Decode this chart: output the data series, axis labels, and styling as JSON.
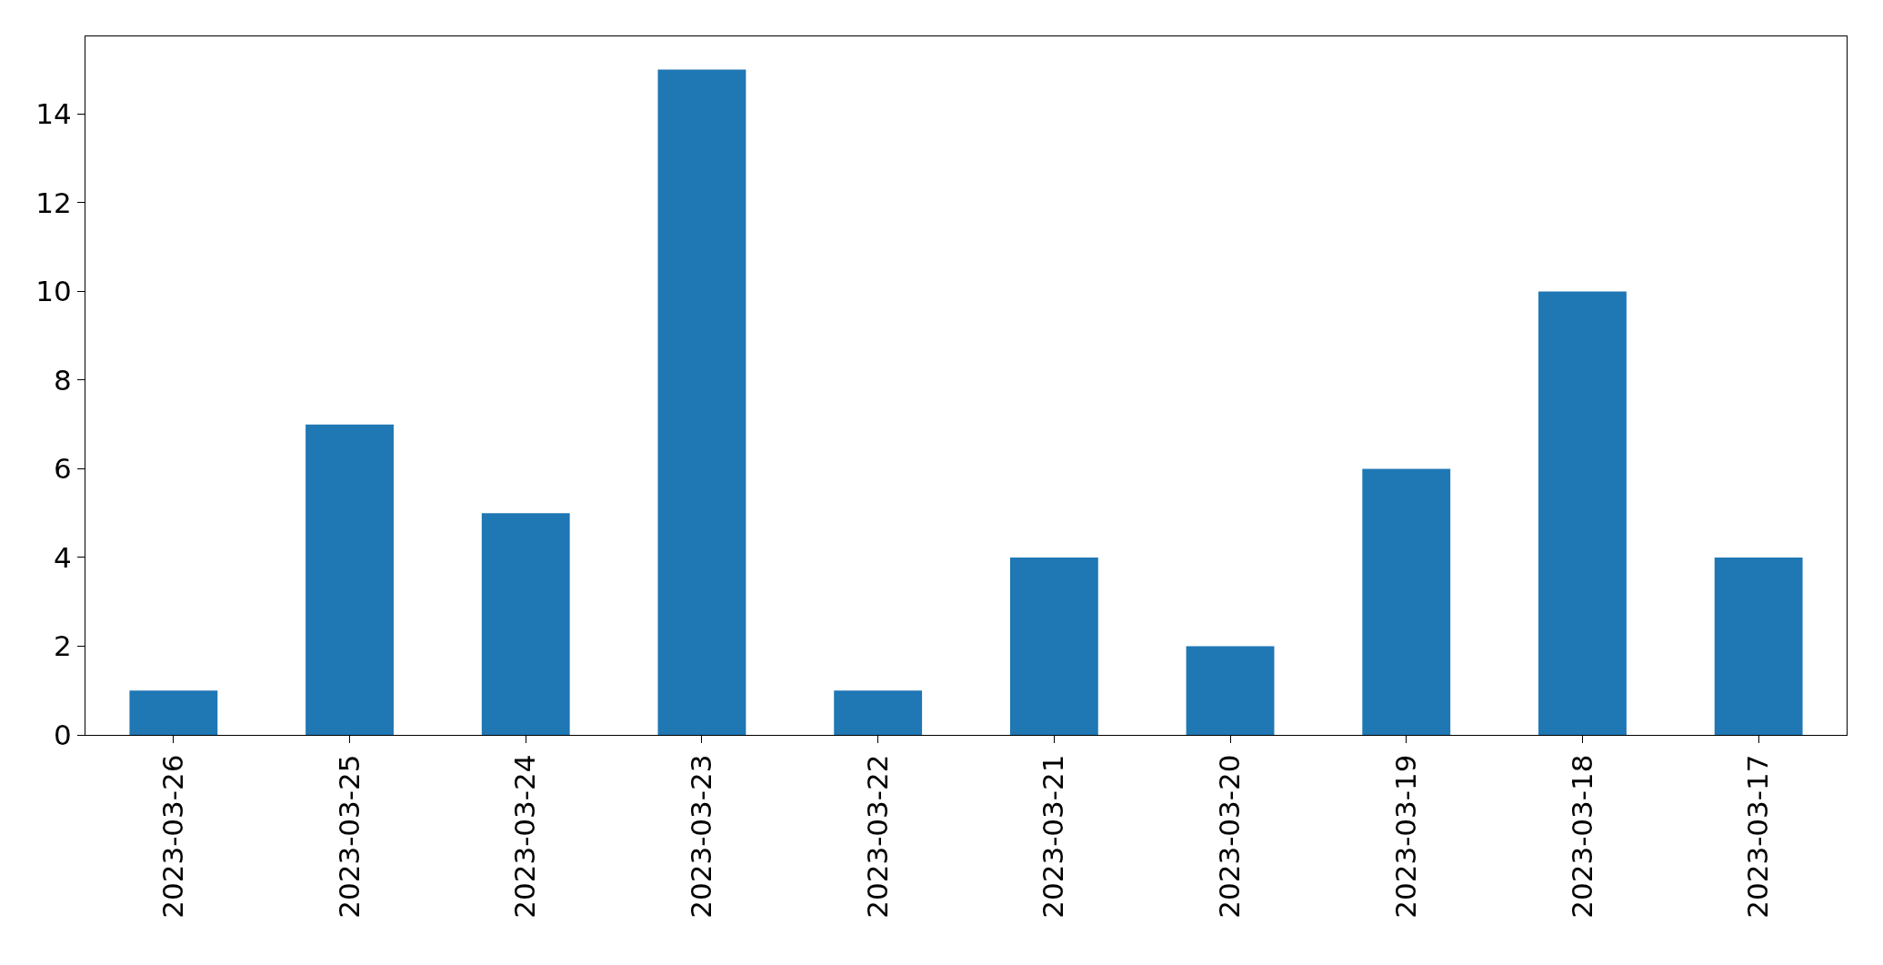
{
  "chart_data": {
    "type": "bar",
    "categories": [
      "2023-03-26",
      "2023-03-25",
      "2023-03-24",
      "2023-03-23",
      "2023-03-22",
      "2023-03-21",
      "2023-03-20",
      "2023-03-19",
      "2023-03-18",
      "2023-03-17"
    ],
    "values": [
      1,
      7,
      5,
      15,
      1,
      4,
      2,
      6,
      10,
      4
    ],
    "color": "#1f77b4",
    "ylim": [
      0,
      15.75
    ],
    "yticks": [
      0,
      2,
      4,
      6,
      8,
      10,
      12,
      14
    ],
    "grid": false,
    "legend": false
  }
}
